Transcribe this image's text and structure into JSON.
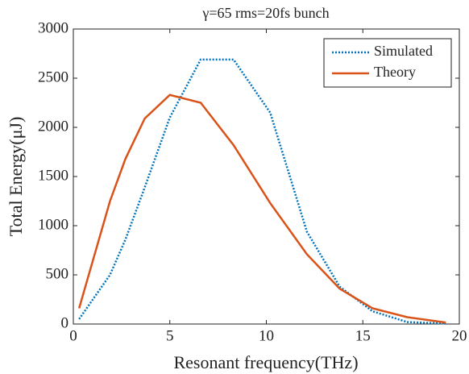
{
  "chart_data": {
    "type": "line",
    "title": "γ=65 rms=20fs bunch",
    "x_label": "Resonant frequency(THz)",
    "y_label": "Total Energy(μJ)",
    "x": [
      0.3,
      1.9,
      2.7,
      3.7,
      5.0,
      6.6,
      8.3,
      10.2,
      12.1,
      13.8,
      15.5,
      17.3,
      19.3
    ],
    "series": [
      {
        "name": "Simulated",
        "color": "#0072BD",
        "dash": "dotted",
        "values": [
          50,
          500,
          860,
          1390,
          2100,
          2690,
          2690,
          2150,
          940,
          380,
          130,
          20,
          5
        ]
      },
      {
        "name": "Theory",
        "color": "#D95319",
        "dash": "solid",
        "values": [
          160,
          1250,
          1680,
          2090,
          2330,
          2250,
          1820,
          1230,
          710,
          360,
          160,
          70,
          15
        ]
      }
    ],
    "xlim": [
      0,
      20
    ],
    "xticks": [
      0,
      5,
      10,
      15,
      20
    ],
    "ylim": [
      0,
      3000
    ],
    "yticks": [
      0,
      500,
      1000,
      1500,
      2000,
      2500,
      3000
    ],
    "legend": "top-right"
  }
}
